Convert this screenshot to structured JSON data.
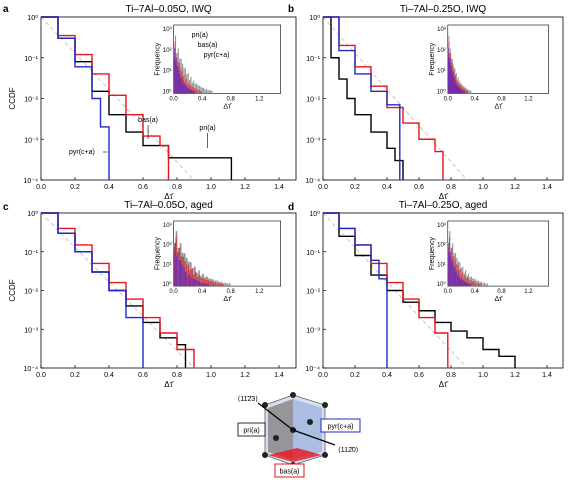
{
  "figure": {
    "panel_labels": [
      "a",
      "b",
      "c",
      "d"
    ]
  },
  "colors": {
    "pri": "#000000",
    "bas": "#e8141c",
    "pyr": "#1f2ac8",
    "reference": "#bbbbbb",
    "hist_pri": "#888888",
    "hist_bas": "#d63a3a",
    "hist_pyr": "#6a2ab8"
  },
  "chart_data": [
    {
      "type": "line",
      "panel": "a",
      "title": "Ti–7Al–0.05O, IWQ",
      "xlabel": "Δτ̄",
      "ylabel": "CCDF",
      "xlim": [
        0,
        1.5
      ],
      "ylim": [
        0.0001,
        1
      ],
      "yscale": "log",
      "x_ticks": [
        "0.0",
        "0.2",
        "0.4",
        "0.6",
        "0.8",
        "1.0",
        "1.2",
        "1.4"
      ],
      "y_ticks": [
        "10⁰",
        "10⁻¹",
        "10⁻²",
        "10⁻³",
        "10⁻⁴"
      ],
      "annotations": [
        "pyr(c+a)",
        "bas(a)",
        "pri(a)"
      ],
      "series": [
        {
          "name": "pri(a)",
          "x": [
            0,
            0.1,
            0.2,
            0.3,
            0.4,
            0.5,
            0.6,
            0.75,
            0.75,
            1.12,
            1.12
          ],
          "y": [
            1,
            0.3,
            0.08,
            0.015,
            0.004,
            0.0015,
            0.0007,
            0.00035,
            0.00035,
            0.00035,
            0.0001
          ]
        },
        {
          "name": "bas(a)",
          "x": [
            0,
            0.1,
            0.2,
            0.3,
            0.4,
            0.5,
            0.6,
            0.7,
            0.75,
            0.75
          ],
          "y": [
            1,
            0.35,
            0.12,
            0.04,
            0.012,
            0.004,
            0.0012,
            0.0007,
            0.0007,
            0.0001
          ]
        },
        {
          "name": "pyr(c+a)",
          "x": [
            0,
            0.1,
            0.2,
            0.3,
            0.35,
            0.4,
            0.4
          ],
          "y": [
            1,
            0.3,
            0.06,
            0.01,
            0.002,
            0.0007,
            0.0001
          ]
        }
      ],
      "reference_line": {
        "x": [
          0,
          0.9
        ],
        "y": [
          1,
          0.0001
        ]
      },
      "inset": {
        "xlabel": "Δτ̄",
        "ylabel": "Frequency",
        "xlim": [
          0,
          1.5
        ],
        "x_ticks": [
          "0.0",
          "0.4",
          "0.8",
          "1.2"
        ],
        "y_ticks": [
          "10³",
          "10²",
          "10¹",
          "10⁰"
        ],
        "legend": [
          "pri(a)",
          "bas(a)",
          "pyr(c+a)"
        ],
        "hist_extent": {
          "pri": 0.55,
          "bas": 0.4,
          "pyr": 0.3
        }
      }
    },
    {
      "type": "line",
      "panel": "b",
      "title": "Ti–7Al–0.25O, IWQ",
      "xlabel": "Δτ̄",
      "ylabel": "",
      "xlim": [
        0,
        1.5
      ],
      "ylim": [
        0.0001,
        1
      ],
      "yscale": "log",
      "x_ticks": [
        "0.0",
        "0.2",
        "0.4",
        "0.6",
        "0.8",
        "1.0",
        "1.2",
        "1.4"
      ],
      "y_ticks": [
        "10⁰",
        "10⁻¹",
        "10⁻²",
        "10⁻³",
        "10⁻⁴"
      ],
      "series": [
        {
          "name": "pri(a)",
          "x": [
            0,
            0.05,
            0.1,
            0.15,
            0.2,
            0.3,
            0.4,
            0.45,
            0.5,
            0.5
          ],
          "y": [
            1,
            0.1,
            0.03,
            0.01,
            0.004,
            0.0015,
            0.0006,
            0.0003,
            0.0002,
            0.0001
          ]
        },
        {
          "name": "bas(a)",
          "x": [
            0,
            0.1,
            0.2,
            0.3,
            0.4,
            0.5,
            0.6,
            0.7,
            0.75,
            0.75
          ],
          "y": [
            1,
            0.2,
            0.06,
            0.02,
            0.006,
            0.0025,
            0.001,
            0.0005,
            0.0003,
            0.0001
          ]
        },
        {
          "name": "pyr(c+a)",
          "x": [
            0,
            0.1,
            0.2,
            0.3,
            0.4,
            0.48,
            0.48
          ],
          "y": [
            1,
            0.15,
            0.04,
            0.015,
            0.007,
            0.004,
            0.0001
          ]
        }
      ],
      "reference_line": {
        "x": [
          0,
          0.9
        ],
        "y": [
          1,
          0.0001
        ]
      },
      "inset": {
        "xlabel": "Δτ̄",
        "ylabel": "Frequency",
        "xlim": [
          0,
          1.5
        ],
        "x_ticks": [
          "0.0",
          "0.4",
          "0.8",
          "1.2"
        ],
        "y_ticks": [
          "10³",
          "10²",
          "10¹",
          "10⁰"
        ],
        "hist_extent": {
          "pri": 0.35,
          "bas": 0.3,
          "pyr": 0.25
        }
      }
    },
    {
      "type": "line",
      "panel": "c",
      "title": "Ti–7Al–0.05O, aged",
      "xlabel": "Δτ̄",
      "ylabel": "CCDF",
      "xlim": [
        0,
        1.5
      ],
      "ylim": [
        0.0001,
        1
      ],
      "yscale": "log",
      "x_ticks": [
        "0.0",
        "0.2",
        "0.4",
        "0.6",
        "0.8",
        "1.0",
        "1.2",
        "1.4"
      ],
      "y_ticks": [
        "10⁰",
        "10⁻¹",
        "10⁻²",
        "10⁻³",
        "10⁻⁴"
      ],
      "series": [
        {
          "name": "pri(a)",
          "x": [
            0,
            0.1,
            0.2,
            0.3,
            0.4,
            0.5,
            0.6,
            0.7,
            0.8,
            0.85,
            0.85
          ],
          "y": [
            1,
            0.3,
            0.1,
            0.03,
            0.01,
            0.004,
            0.0015,
            0.0006,
            0.0004,
            0.0002,
            0.0001
          ]
        },
        {
          "name": "bas(a)",
          "x": [
            0,
            0.1,
            0.2,
            0.3,
            0.4,
            0.5,
            0.6,
            0.7,
            0.8,
            0.9,
            0.9
          ],
          "y": [
            1,
            0.4,
            0.15,
            0.05,
            0.016,
            0.006,
            0.002,
            0.0008,
            0.0003,
            0.0003,
            0.0001
          ]
        },
        {
          "name": "pyr(c+a)",
          "x": [
            0,
            0.1,
            0.2,
            0.3,
            0.4,
            0.5,
            0.6,
            0.6
          ],
          "y": [
            1,
            0.3,
            0.1,
            0.03,
            0.01,
            0.002,
            0.0005,
            0.0001
          ]
        }
      ],
      "reference_line": {
        "x": [
          0,
          0.9
        ],
        "y": [
          1,
          0.0001
        ]
      },
      "inset": {
        "xlabel": "Δτ̄",
        "ylabel": "Frequency",
        "xlim": [
          0,
          1.5
        ],
        "x_ticks": [
          "0.0",
          "0.4",
          "0.8",
          "1.2"
        ],
        "y_ticks": [
          "10³",
          "10²",
          "10¹",
          "10⁰"
        ],
        "hist_extent": {
          "pri": 0.8,
          "bas": 0.7,
          "pyr": 0.5
        }
      }
    },
    {
      "type": "line",
      "panel": "d",
      "title": "Ti–7Al–0.25O, aged",
      "xlabel": "Δτ̄",
      "ylabel": "",
      "xlim": [
        0,
        1.5
      ],
      "ylim": [
        0.0001,
        1
      ],
      "yscale": "log",
      "x_ticks": [
        "0.0",
        "0.2",
        "0.4",
        "0.6",
        "0.8",
        "1.0",
        "1.2",
        "1.4"
      ],
      "y_ticks": [
        "10⁰",
        "10⁻¹",
        "10⁻²",
        "10⁻³",
        "10⁻⁴"
      ],
      "series": [
        {
          "name": "pri(a)",
          "x": [
            0,
            0.1,
            0.2,
            0.3,
            0.4,
            0.5,
            0.6,
            0.7,
            0.8,
            0.9,
            1.0,
            1.1,
            1.2,
            1.2
          ],
          "y": [
            1,
            0.25,
            0.08,
            0.025,
            0.01,
            0.005,
            0.003,
            0.0015,
            0.0009,
            0.0006,
            0.0003,
            0.0002,
            0.0002,
            0.0001
          ]
        },
        {
          "name": "bas(a)",
          "x": [
            0,
            0.1,
            0.2,
            0.3,
            0.4,
            0.5,
            0.6,
            0.7,
            0.78,
            0.78
          ],
          "y": [
            1,
            0.4,
            0.15,
            0.05,
            0.016,
            0.006,
            0.002,
            0.0008,
            0.0003,
            0.0001
          ]
        },
        {
          "name": "pyr(c+a)",
          "x": [
            0,
            0.1,
            0.2,
            0.3,
            0.35,
            0.4,
            0.4
          ],
          "y": [
            1,
            0.4,
            0.15,
            0.06,
            0.02,
            0.005,
            0.0001
          ]
        }
      ],
      "reference_line": {
        "x": [
          0,
          0.9
        ],
        "y": [
          1,
          0.0001
        ]
      },
      "inset": {
        "xlabel": "Δτ̄",
        "ylabel": "Frequency",
        "xlim": [
          0,
          1.5
        ],
        "x_ticks": [
          "0.0",
          "0.4",
          "0.8",
          "1.2"
        ],
        "y_ticks": [
          "10³",
          "10²",
          "10¹",
          "10⁰"
        ],
        "hist_extent": {
          "pri": 0.6,
          "bas": 0.5,
          "pyr": 0.35
        }
      }
    }
  ],
  "crystal_diagram": {
    "labels": {
      "pri": "pri(a)",
      "bas": "bas(a)",
      "pyr": "pyr(c+a)",
      "dir1": "⟨11̄2̄3⟩",
      "dir2": "⟨112̄0⟩"
    }
  }
}
